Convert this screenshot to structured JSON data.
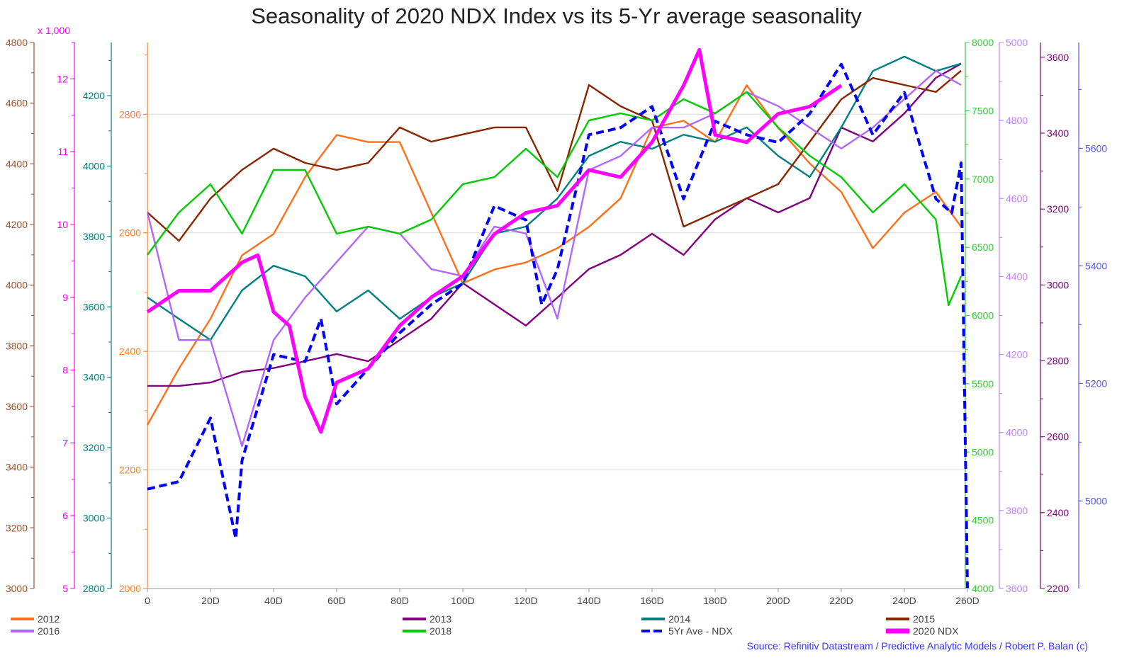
{
  "chart_data": {
    "type": "line",
    "title": "Seasonality of 2020 NDX Index vs its 5-Yr average seasonality",
    "source": "Source: Refinitiv Datastream / Predictive Analytic Models / Robert P. Balan (c)",
    "grid": "horizontal",
    "legend_placement": "bottom",
    "x_axis": {
      "range": [
        0,
        260
      ],
      "ticks": [
        0,
        20,
        40,
        60,
        80,
        100,
        120,
        140,
        160,
        180,
        200,
        220,
        240,
        260
      ],
      "tick_labels": [
        "0",
        "20D",
        "40D",
        "60D",
        "80D",
        "100D",
        "120D",
        "140D",
        "160D",
        "180D",
        "200D",
        "220D",
        "240D",
        "260D"
      ]
    },
    "y_axes": [
      {
        "id": "y2015",
        "side": "left",
        "color": "#a0522d",
        "range": [
          3000,
          4800
        ],
        "ticks": [
          3000,
          3200,
          3400,
          3600,
          3800,
          4000,
          4200,
          4400,
          4600,
          4800
        ],
        "tick_labels": [
          "3000",
          "3200",
          "3400",
          "3600",
          "3800",
          "4000",
          "4200",
          "4400",
          "4600",
          "4800"
        ]
      },
      {
        "id": "y2020",
        "side": "left",
        "color": "#ff00ff",
        "unit_label": "x 1,000",
        "range": [
          5,
          12.5
        ],
        "ticks": [
          5,
          6,
          7,
          8,
          9,
          10,
          11,
          12
        ],
        "tick_labels": [
          "5",
          "6",
          "7",
          "8",
          "9",
          "10",
          "11",
          "12"
        ]
      },
      {
        "id": "y2014",
        "side": "left",
        "color": "#008080",
        "range": [
          2800,
          4351
        ],
        "ticks": [
          2800,
          3000,
          3200,
          3400,
          3600,
          3800,
          4000,
          4200
        ],
        "tick_labels": [
          "2800",
          "3000",
          "3200",
          "3400",
          "3600",
          "3800",
          "4000",
          "4200"
        ]
      },
      {
        "id": "y2012",
        "side": "left",
        "color": "#ff7f27",
        "range": [
          2000,
          2921
        ],
        "ticks": [
          2000,
          2200,
          2400,
          2600,
          2800
        ],
        "tick_labels": [
          "2000",
          "2200",
          "2400",
          "2600",
          "2800"
        ]
      },
      {
        "id": "y2018",
        "side": "right",
        "color": "#33cc33",
        "range": [
          4000,
          8000
        ],
        "ticks": [
          4000,
          4500,
          5000,
          5500,
          6000,
          6500,
          7000,
          7500,
          8000
        ],
        "tick_labels": [
          "4000",
          "4500",
          "5000",
          "5500",
          "6000",
          "6500",
          "7000",
          "7500",
          "8000"
        ]
      },
      {
        "id": "y2016",
        "side": "right",
        "color": "#c080ff",
        "range": [
          3600,
          5000
        ],
        "ticks": [
          3600,
          3800,
          4000,
          4200,
          4400,
          4600,
          4800,
          5000
        ],
        "tick_labels": [
          "3600",
          "3800",
          "4000",
          "4200",
          "4400",
          "4600",
          "4800",
          "5000"
        ]
      },
      {
        "id": "y2013",
        "side": "right",
        "color": "#800080",
        "range": [
          2200,
          3639
        ],
        "ticks": [
          2200,
          2400,
          2600,
          2800,
          3000,
          3200,
          3400,
          3600
        ],
        "tick_labels": [
          "2200",
          "2400",
          "2600",
          "2800",
          "3000",
          "3200",
          "3400",
          "3600"
        ]
      },
      {
        "id": "y5yr",
        "side": "right",
        "color": "#5555ff",
        "range": [
          4851,
          5780
        ],
        "ticks": [
          5000,
          5200,
          5400,
          5600
        ],
        "tick_labels": [
          "5000",
          "5200",
          "5400",
          "5600"
        ]
      }
    ],
    "series": [
      {
        "name": "2012",
        "axis": "y2012",
        "color": "#ff6f1a",
        "style": "solid",
        "x": [
          0,
          10,
          20,
          30,
          40,
          50,
          60,
          70,
          80,
          90,
          100,
          110,
          120,
          130,
          140,
          150,
          160,
          170,
          180,
          190,
          200,
          210,
          220,
          230,
          240,
          250,
          258
        ],
        "y": [
          2276,
          2371,
          2455,
          2562,
          2598,
          2694,
          2765,
          2753,
          2753,
          2634,
          2515,
          2538,
          2550,
          2574,
          2610,
          2658,
          2777,
          2789,
          2753,
          2849,
          2777,
          2717,
          2669,
          2574,
          2634,
          2669,
          2610
        ]
      },
      {
        "name": "2013",
        "axis": "y2013",
        "color": "#800080",
        "style": "solid",
        "x": [
          0,
          10,
          20,
          30,
          40,
          50,
          60,
          70,
          80,
          90,
          100,
          110,
          120,
          130,
          140,
          150,
          160,
          170,
          180,
          190,
          200,
          210,
          220,
          230,
          240,
          250,
          258
        ],
        "y": [
          2734,
          2734,
          2743,
          2771,
          2781,
          2799,
          2818,
          2799,
          2855,
          2911,
          3005,
          2949,
          2893,
          2967,
          3042,
          3079,
          3135,
          3079,
          3173,
          3229,
          3191,
          3229,
          3415,
          3378,
          3452,
          3546,
          3583
        ]
      },
      {
        "name": "2014",
        "axis": "y2014",
        "color": "#008080",
        "style": "solid",
        "x": [
          0,
          10,
          20,
          30,
          40,
          50,
          60,
          70,
          80,
          90,
          100,
          110,
          120,
          130,
          140,
          150,
          160,
          170,
          180,
          190,
          200,
          210,
          220,
          230,
          240,
          250,
          258
        ],
        "y": [
          3627,
          3566,
          3506,
          3647,
          3717,
          3687,
          3587,
          3647,
          3566,
          3627,
          3667,
          3808,
          3828,
          3908,
          4029,
          4069,
          4049,
          4089,
          4069,
          4110,
          4029,
          3969,
          4110,
          4270,
          4311,
          4270,
          4291
        ]
      },
      {
        "name": "2015",
        "axis": "y2015",
        "color": "#8b2500",
        "style": "solid",
        "x": [
          0,
          10,
          20,
          30,
          40,
          50,
          60,
          70,
          80,
          90,
          100,
          110,
          120,
          130,
          140,
          150,
          160,
          170,
          180,
          190,
          200,
          210,
          220,
          230,
          240,
          250,
          258
        ],
        "y": [
          4240,
          4146,
          4286,
          4380,
          4450,
          4403,
          4380,
          4403,
          4520,
          4473,
          4497,
          4520,
          4520,
          4310,
          4660,
          4590,
          4543,
          4193,
          4240,
          4286,
          4333,
          4473,
          4613,
          4683,
          4660,
          4637,
          4707
        ]
      },
      {
        "name": "2016",
        "axis": "y2016",
        "color": "#b266ff",
        "style": "solid",
        "x": [
          0,
          10,
          20,
          30,
          40,
          50,
          60,
          70,
          80,
          90,
          100,
          110,
          120,
          130,
          140,
          150,
          160,
          170,
          180,
          190,
          200,
          210,
          220,
          230,
          240,
          250,
          258
        ],
        "y": [
          4564,
          4237,
          4237,
          3965,
          4237,
          4346,
          4437,
          4528,
          4510,
          4419,
          4401,
          4528,
          4510,
          4292,
          4673,
          4709,
          4782,
          4782,
          4818,
          4873,
          4837,
          4782,
          4728,
          4782,
          4855,
          4927,
          4891
        ]
      },
      {
        "name": "2018",
        "axis": "y2018",
        "color": "#00cc00",
        "style": "solid",
        "x": [
          0,
          10,
          20,
          30,
          40,
          50,
          60,
          70,
          80,
          90,
          100,
          110,
          120,
          130,
          140,
          150,
          160,
          170,
          180,
          190,
          200,
          210,
          220,
          230,
          240,
          250,
          254,
          258
        ],
        "y": [
          6444,
          6755,
          6962,
          6599,
          7066,
          7066,
          6599,
          6651,
          6599,
          6703,
          6962,
          7014,
          7222,
          7014,
          7429,
          7481,
          7429,
          7585,
          7481,
          7637,
          7377,
          7170,
          7014,
          6755,
          6962,
          6703,
          6075,
          6288
        ]
      },
      {
        "name": "5Yr Ave - NDX",
        "axis": "y5yr",
        "color": "#0000ff",
        "style": "dashed",
        "x": [
          0,
          10,
          20,
          28,
          30,
          40,
          50,
          55,
          60,
          70,
          80,
          90,
          100,
          110,
          120,
          125,
          130,
          140,
          150,
          160,
          170,
          180,
          190,
          200,
          210,
          220,
          230,
          240,
          250,
          255,
          258,
          260
        ],
        "y": [
          5020,
          5033,
          5141,
          4936,
          5069,
          5249,
          5237,
          5310,
          5165,
          5225,
          5286,
          5334,
          5370,
          5502,
          5478,
          5334,
          5394,
          5623,
          5635,
          5671,
          5514,
          5646,
          5623,
          5610,
          5659,
          5743,
          5623,
          5695,
          5514,
          5490,
          5575,
          4852
        ]
      },
      {
        "name": "2020 NDX",
        "axis": "y2020",
        "color": "#ff00ff",
        "style": "thick",
        "x": [
          0,
          10,
          20,
          30,
          35,
          40,
          45,
          50,
          55,
          60,
          70,
          80,
          90,
          100,
          110,
          120,
          130,
          140,
          150,
          160,
          170,
          175,
          180,
          190,
          200,
          210,
          220
        ],
        "y": [
          8.8,
          9.09,
          9.09,
          9.48,
          9.58,
          8.8,
          8.61,
          7.63,
          7.15,
          7.83,
          8.02,
          8.61,
          9.0,
          9.29,
          9.87,
          10.16,
          10.26,
          10.75,
          10.65,
          11.13,
          11.91,
          12.4,
          11.23,
          11.13,
          11.52,
          11.62,
          11.91
        ]
      }
    ]
  }
}
